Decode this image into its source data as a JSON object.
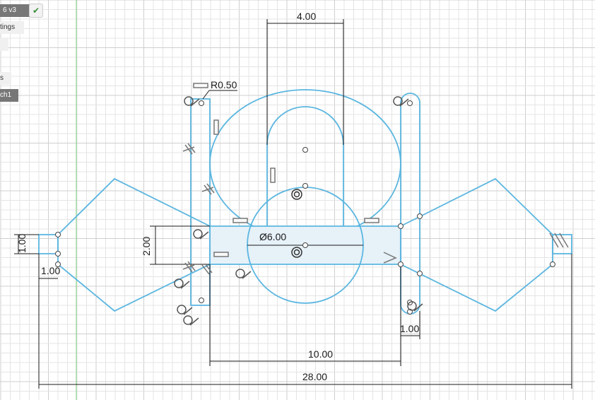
{
  "browser": {
    "document_version": "6 v3",
    "check_icon": "checkmark-icon",
    "item_settings": "tings",
    "item_small": "",
    "item_s": "s",
    "item_sketch": "ch1"
  },
  "dimensions": {
    "slot_width": "4.00",
    "fillet_radius": "R0.50",
    "circle_diameter": "Ø6.00",
    "bar_height": "2.00",
    "tab_height": "1.00",
    "tab_width": "1.00",
    "arm_width": "1.00",
    "center_width": "10.00",
    "overall_width": "28.00"
  },
  "colors": {
    "sketch_line": "#5bb6e0",
    "profile_fill": "#e6f1f8",
    "axis_green": "#7ccf7c",
    "grid": "#e4e4e4"
  }
}
